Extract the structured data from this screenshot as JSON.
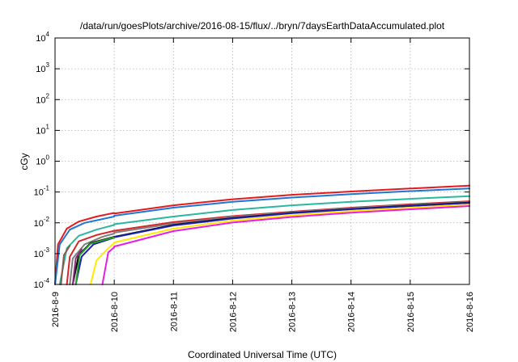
{
  "chart_data": {
    "type": "line",
    "title": "/data/run/goesPlots/archive/2016-08-15/flux/../bryn/7daysEarthDataAccumulated.plot",
    "xlabel": "Coordinated Universal Time (UTC)",
    "ylabel": "cGy",
    "yscale": "log",
    "xlim": [
      "2016-08-09",
      "2016-08-16"
    ],
    "ylim": [
      0.0001,
      10000
    ],
    "grid": true,
    "x_ticks": [
      "2016-8-9",
      "2016-8-10",
      "2016-8-11",
      "2016-8-12",
      "2016-8-13",
      "2016-8-14",
      "2016-8-15",
      "2016-8-16"
    ],
    "y_ticks": [
      {
        "mantissa": "10",
        "exp": "-4"
      },
      {
        "mantissa": "10",
        "exp": "-3"
      },
      {
        "mantissa": "10",
        "exp": "-2"
      },
      {
        "mantissa": "10",
        "exp": "-1"
      },
      {
        "mantissa": "10",
        "exp": "0"
      },
      {
        "mantissa": "10",
        "exp": "1"
      },
      {
        "mantissa": "10",
        "exp": "2"
      },
      {
        "mantissa": "10",
        "exp": "3"
      },
      {
        "mantissa": "10",
        "exp": "4"
      }
    ],
    "series": [
      {
        "color": "#e41a1c",
        "left": [
          [
            "2016-08-09 00:00",
            0.0001
          ],
          [
            "2016-08-09 01:12",
            0.002
          ],
          [
            "2016-08-09 04:48",
            0.0065
          ],
          [
            "2016-08-09 09:36",
            0.011
          ],
          [
            "2016-08-09 16:48",
            0.016
          ],
          [
            "2016-08-10 00:00",
            0.021
          ]
        ],
        "right": [
          [
            "2016-08-10 00:00",
            0.02
          ],
          [
            "2016-08-11 00:00",
            0.037
          ],
          [
            "2016-08-12 00:00",
            0.058
          ],
          [
            "2016-08-13 00:00",
            0.081
          ],
          [
            "2016-08-14 00:00",
            0.104
          ],
          [
            "2016-08-15 00:00",
            0.13
          ],
          [
            "2016-08-16 00:00",
            0.16
          ]
        ]
      },
      {
        "color": "#1f77d4",
        "left": [
          [
            "2016-08-09 00:00",
            0.0001
          ],
          [
            "2016-08-09 01:55",
            0.002
          ],
          [
            "2016-08-09 06:00",
            0.006
          ],
          [
            "2016-08-09 12:00",
            0.01
          ],
          [
            "2016-08-10 00:00",
            0.016
          ]
        ],
        "right": [
          [
            "2016-08-10 00:00",
            0.017
          ],
          [
            "2016-08-11 00:00",
            0.031
          ],
          [
            "2016-08-12 00:00",
            0.048
          ],
          [
            "2016-08-13 00:00",
            0.066
          ],
          [
            "2016-08-14 00:00",
            0.085
          ],
          [
            "2016-08-15 00:00",
            0.107
          ],
          [
            "2016-08-16 00:00",
            0.13
          ]
        ]
      },
      {
        "color": "#2ab7a0",
        "left": [
          [
            "2016-08-09 01:55",
            0.0001
          ],
          [
            "2016-08-09 04:48",
            0.0015
          ],
          [
            "2016-08-09 09:36",
            0.0038
          ],
          [
            "2016-08-09 16:48",
            0.006
          ],
          [
            "2016-08-10 00:00",
            0.0085
          ]
        ],
        "right": [
          [
            "2016-08-10 00:00",
            0.009
          ],
          [
            "2016-08-11 00:00",
            0.016
          ],
          [
            "2016-08-12 00:00",
            0.026
          ],
          [
            "2016-08-13 00:00",
            0.037
          ],
          [
            "2016-08-14 00:00",
            0.048
          ],
          [
            "2016-08-15 00:00",
            0.06
          ],
          [
            "2016-08-16 00:00",
            0.073
          ]
        ]
      },
      {
        "color": "#d62728",
        "left": [
          [
            "2016-08-09 04:48",
            0.0001
          ],
          [
            "2016-08-09 06:00",
            0.0008
          ],
          [
            "2016-08-09 09:36",
            0.0025
          ],
          [
            "2016-08-09 16:48",
            0.004
          ],
          [
            "2016-08-10 00:00",
            0.0055
          ]
        ],
        "right": [
          [
            "2016-08-10 00:00",
            0.0055
          ],
          [
            "2016-08-11 00:00",
            0.0105
          ],
          [
            "2016-08-12 00:00",
            0.0165
          ],
          [
            "2016-08-13 00:00",
            0.023
          ],
          [
            "2016-08-14 00:00",
            0.031
          ],
          [
            "2016-08-15 00:00",
            0.04
          ],
          [
            "2016-08-16 00:00",
            0.05
          ]
        ]
      },
      {
        "color": "#7f7f7f",
        "left": [
          [
            "2016-08-09 06:00",
            0.0001
          ],
          [
            "2016-08-09 07:12",
            0.0007
          ],
          [
            "2016-08-09 12:00",
            0.002
          ],
          [
            "2016-08-09 19:12",
            0.0035
          ],
          [
            "2016-08-10 00:00",
            0.0045
          ]
        ],
        "right": [
          [
            "2016-08-10 00:00",
            0.0048
          ],
          [
            "2016-08-11 00:00",
            0.0095
          ],
          [
            "2016-08-12 00:00",
            0.0155
          ],
          [
            "2016-08-13 00:00",
            0.022
          ],
          [
            "2016-08-14 00:00",
            0.03
          ],
          [
            "2016-08-15 00:00",
            0.038
          ],
          [
            "2016-08-16 00:00",
            0.047
          ]
        ]
      },
      {
        "color": "#000000",
        "left": [
          [
            "2016-08-09 07:12",
            0.0001
          ],
          [
            "2016-08-09 09:36",
            0.0009
          ],
          [
            "2016-08-09 14:24",
            0.0022
          ],
          [
            "2016-08-10 00:00",
            0.0035
          ]
        ],
        "right": [
          [
            "2016-08-10 00:00",
            0.0035
          ],
          [
            "2016-08-11 00:00",
            0.0085
          ],
          [
            "2016-08-12 00:00",
            0.0142
          ],
          [
            "2016-08-13 00:00",
            0.021
          ],
          [
            "2016-08-14 00:00",
            0.028
          ],
          [
            "2016-08-15 00:00",
            0.036
          ],
          [
            "2016-08-16 00:00",
            0.045
          ]
        ]
      },
      {
        "color": "#1f1fb4",
        "left": [
          [
            "2016-08-09 08:24",
            0.0001
          ],
          [
            "2016-08-09 10:48",
            0.0008
          ],
          [
            "2016-08-09 15:36",
            0.002
          ],
          [
            "2016-08-10 00:00",
            0.0033
          ]
        ],
        "right": [
          [
            "2016-08-10 00:00",
            0.0034
          ],
          [
            "2016-08-11 00:00",
            0.0082
          ],
          [
            "2016-08-12 00:00",
            0.0138
          ],
          [
            "2016-08-13 00:00",
            0.0205
          ],
          [
            "2016-08-14 00:00",
            0.0275
          ],
          [
            "2016-08-15 00:00",
            0.035
          ],
          [
            "2016-08-16 00:00",
            0.044
          ]
        ]
      },
      {
        "color": "#2ca02c",
        "left": [
          [
            "2016-08-09 08:24",
            0.0001
          ],
          [
            "2016-08-09 10:00",
            0.0009
          ],
          [
            "2016-08-09 14:24",
            0.0021
          ],
          [
            "2016-08-10 00:00",
            0.0034
          ]
        ],
        "right": []
      },
      {
        "color": "#ffea00",
        "left": [
          [
            "2016-08-09 14:24",
            0.0001
          ],
          [
            "2016-08-09 16:48",
            0.0006
          ],
          [
            "2016-08-09 21:36",
            0.0015
          ],
          [
            "2016-08-10 00:00",
            0.0022
          ]
        ],
        "right": [
          [
            "2016-08-10 00:00",
            0.0023
          ],
          [
            "2016-08-11 00:00",
            0.0065
          ],
          [
            "2016-08-12 00:00",
            0.0118
          ],
          [
            "2016-08-13 00:00",
            0.0175
          ],
          [
            "2016-08-14 00:00",
            0.024
          ],
          [
            "2016-08-15 00:00",
            0.031
          ],
          [
            "2016-08-16 00:00",
            0.039
          ]
        ]
      },
      {
        "color": "#e61ee6",
        "left": [
          [
            "2016-08-09 19:12",
            0.0001
          ],
          [
            "2016-08-09 21:36",
            0.0011
          ],
          [
            "2016-08-10 00:00",
            0.0016
          ]
        ],
        "right": [
          [
            "2016-08-10 00:00",
            0.0017
          ],
          [
            "2016-08-11 00:00",
            0.0054
          ],
          [
            "2016-08-12 00:00",
            0.0102
          ],
          [
            "2016-08-13 00:00",
            0.0155
          ],
          [
            "2016-08-14 00:00",
            0.0212
          ],
          [
            "2016-08-15 00:00",
            0.0275
          ],
          [
            "2016-08-16 00:00",
            0.035
          ]
        ]
      },
      {
        "color": "#8c564b",
        "left": [
          [
            "2016-08-09 02:24",
            0.0001
          ],
          [
            "2016-08-09 03:36",
            0.0009
          ],
          [
            "2016-08-09 06:00",
            0.0018
          ]
        ],
        "right": []
      },
      {
        "color": "#8c2d7f",
        "left": [
          [
            "2016-08-09 07:12",
            0.0001
          ],
          [
            "2016-08-09 08:24",
            0.0007
          ],
          [
            "2016-08-09 10:48",
            0.0014
          ]
        ],
        "right": []
      }
    ]
  }
}
